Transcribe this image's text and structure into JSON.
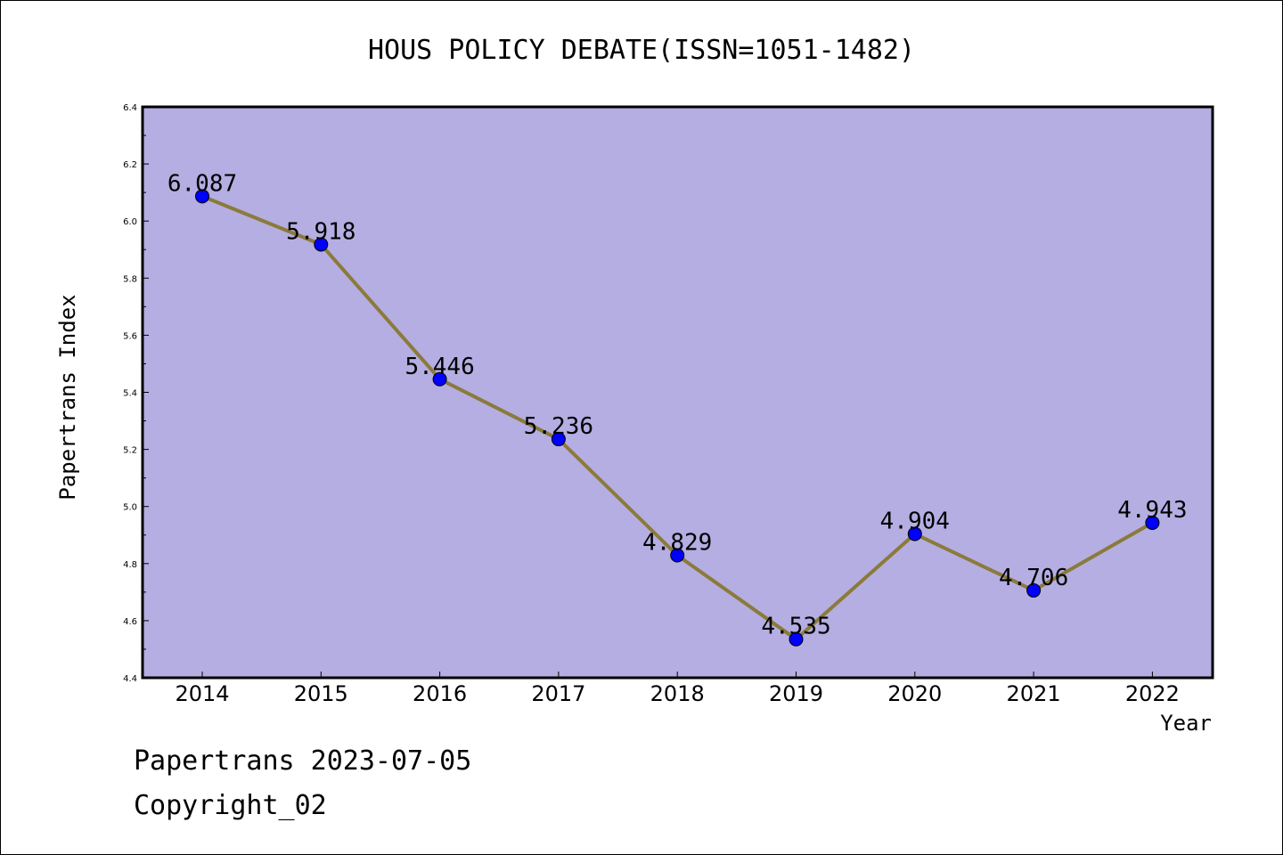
{
  "chart_data": {
    "type": "line",
    "title": "HOUS POLICY DEBATE(ISSN=1051-1482)",
    "xlabel": "Year",
    "ylabel": "Papertrans Index",
    "categories": [
      "2014",
      "2015",
      "2016",
      "2017",
      "2018",
      "2019",
      "2020",
      "2021",
      "2022"
    ],
    "series": [
      {
        "values": [
          6.087,
          5.918,
          5.446,
          5.236,
          4.829,
          4.535,
          4.904,
          4.706,
          4.943
        ],
        "labels": [
          "6.087",
          "5.918",
          "5.446",
          "5.236",
          "4.829",
          "4.535",
          "4.904",
          "4.706",
          "4.943"
        ]
      }
    ],
    "ylim": [
      4.4,
      6.4
    ],
    "yticks": [
      "4.4",
      "4.6",
      "4.8",
      "5.0",
      "5.2",
      "5.4",
      "5.6",
      "5.8",
      "6.0",
      "6.2",
      "6.4"
    ],
    "grid": false,
    "colors": {
      "plot_background": "#b4aee2",
      "line": "#8b7a3a",
      "marker": "#0000ff"
    }
  },
  "footer": {
    "line1": "Papertrans 2023-07-05",
    "line2": "Copyright_02"
  }
}
